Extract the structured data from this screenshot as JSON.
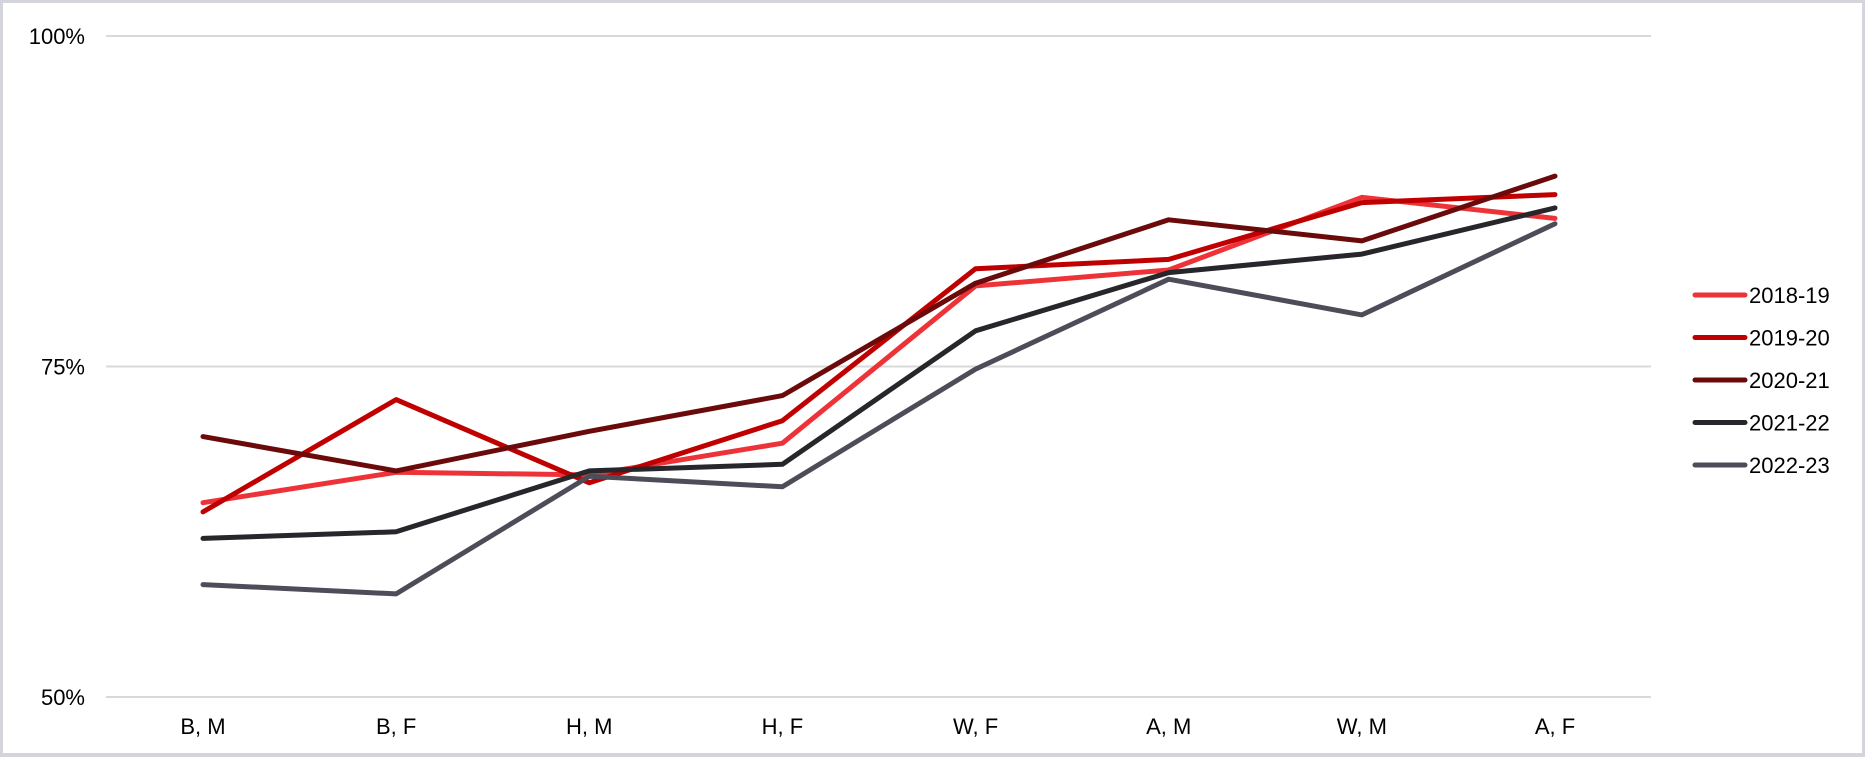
{
  "chart_data": {
    "type": "line",
    "title": "",
    "xlabel": "",
    "ylabel": "",
    "categories": [
      "B, M",
      "B, F",
      "H, M",
      "H, F",
      "W, F",
      "A, M",
      "W, M",
      "A, F"
    ],
    "ylim": [
      50,
      100
    ],
    "yticks": [
      {
        "value": 50,
        "label": "50%"
      },
      {
        "value": 75,
        "label": "75%"
      },
      {
        "value": 100,
        "label": "100%"
      }
    ],
    "grid": true,
    "legend_position": "right",
    "series": [
      {
        "name": "2018-19",
        "color": "#ee3338",
        "values": [
          64.7,
          67.0,
          66.8,
          69.2,
          81.1,
          82.3,
          87.8,
          86.2
        ]
      },
      {
        "name": "2019-20",
        "color": "#c00000",
        "values": [
          64.0,
          72.5,
          66.2,
          70.9,
          82.4,
          83.1,
          87.4,
          88.0
        ]
      },
      {
        "name": "2020-21",
        "color": "#6b0a0a",
        "values": [
          69.7,
          67.1,
          70.1,
          72.8,
          81.3,
          86.1,
          84.5,
          89.4
        ]
      },
      {
        "name": "2021-22",
        "color": "#26262b",
        "values": [
          62.0,
          62.5,
          67.1,
          67.6,
          77.7,
          82.1,
          83.5,
          87.0
        ]
      },
      {
        "name": "2022-23",
        "color": "#4d4c59",
        "values": [
          58.5,
          57.8,
          66.7,
          65.9,
          74.8,
          81.6,
          78.9,
          85.8
        ]
      }
    ]
  }
}
